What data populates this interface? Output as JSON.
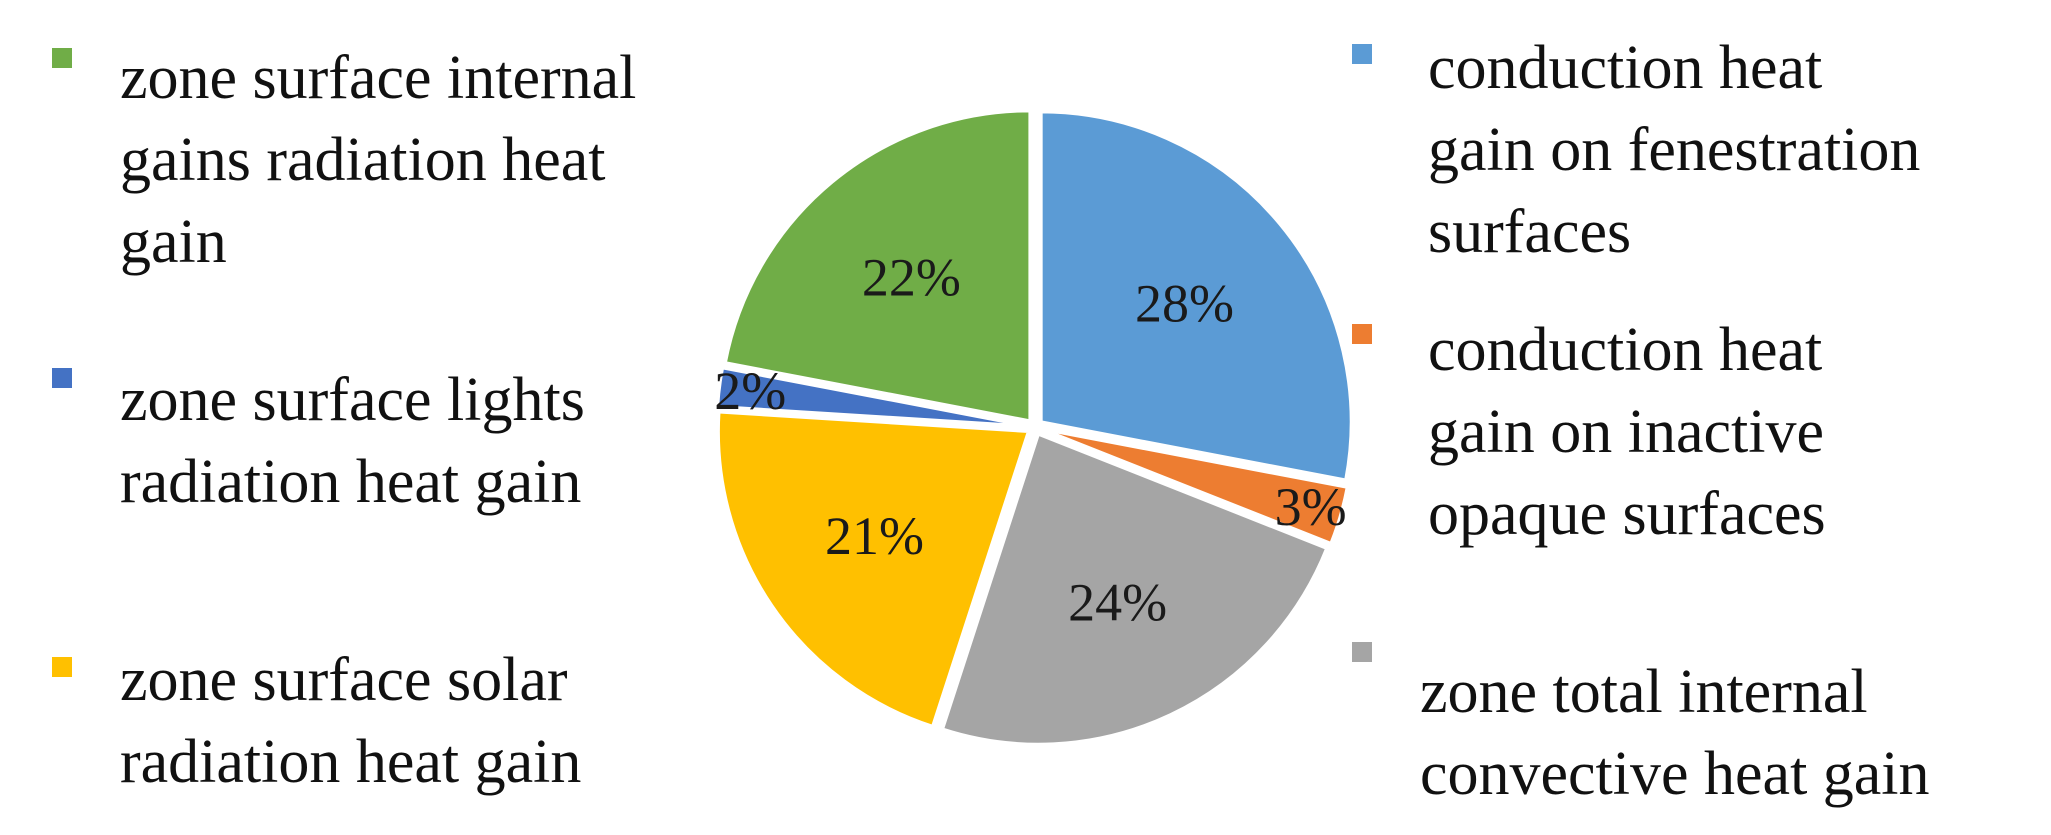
{
  "chart_data": {
    "type": "pie",
    "title": "",
    "slices": [
      {
        "label": "conduction heat gain on fenestration surfaces",
        "lines": [
          "conduction heat",
          "gain  on fenestration",
          "surfaces"
        ],
        "value": 28,
        "display": "28%",
        "color": "#5B9BD5"
      },
      {
        "label": "conduction heat gain on inactive opaque surfaces",
        "lines": [
          "conduction heat",
          "gain  on inactive",
          "opaque surfaces"
        ],
        "value": 3,
        "display": "3%",
        "color": "#ED7D31"
      },
      {
        "label": "zone total internal convective heat gain",
        "lines": [
          "zone total internal",
          "convective heat gain"
        ],
        "value": 24,
        "display": "24%",
        "color": "#A5A5A5"
      },
      {
        "label": "zone surface solar radiation heat gain",
        "lines": [
          "zone surface solar",
          "radiation  heat gain"
        ],
        "value": 21,
        "display": "21%",
        "color": "#FFC000"
      },
      {
        "label": "zone surface lights radiation heat gain",
        "lines": [
          "zone surface lights",
          "radiation  heat gain"
        ],
        "value": 2,
        "display": "2%",
        "color": "#4472C4"
      },
      {
        "label": "zone surface internal gains radiation heat gain",
        "lines": [
          "zone surface internal",
          "gains radiation  heat",
          "gain"
        ],
        "value": 22,
        "display": "22%",
        "color": "#70AD47"
      }
    ],
    "legend_placement": "split left and right of pie",
    "grid": false
  }
}
